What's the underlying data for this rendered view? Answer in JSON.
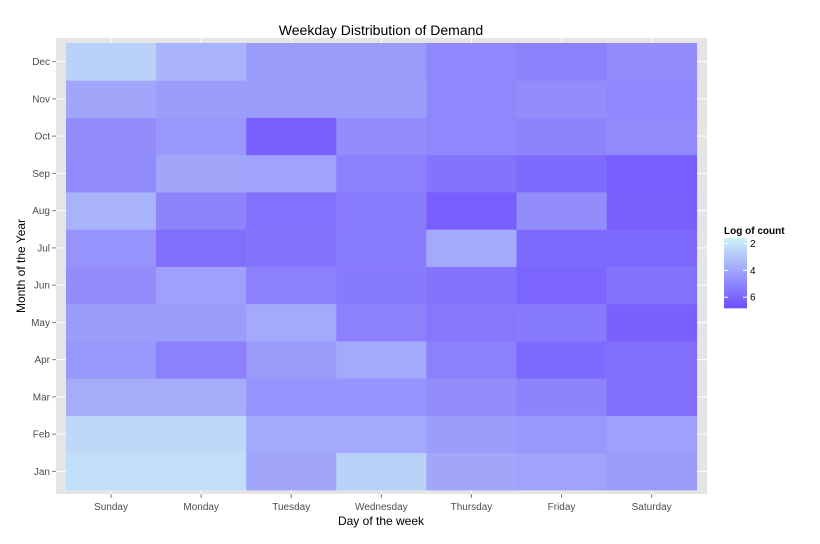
{
  "chart_data": {
    "type": "heatmap",
    "title": "Weekday Distribution of Demand",
    "xlabel": "Day of the week",
    "ylabel": "Month of the Year",
    "x_categories": [
      "Sunday",
      "Monday",
      "Tuesday",
      "Wednesday",
      "Thursday",
      "Friday",
      "Saturday"
    ],
    "y_categories": [
      "Jan",
      "Feb",
      "Mar",
      "Apr",
      "May",
      "Jun",
      "Jul",
      "Aug",
      "Sep",
      "Oct",
      "Nov",
      "Dec"
    ],
    "values": [
      [
        2.2,
        2.2,
        4.0,
        2.6,
        4.0,
        4.1,
        4.3
      ],
      [
        2.4,
        2.4,
        3.9,
        3.9,
        4.3,
        4.5,
        4.2
      ],
      [
        3.8,
        3.8,
        4.6,
        4.6,
        4.8,
        5.1,
        5.8
      ],
      [
        4.5,
        5.2,
        4.4,
        3.9,
        5.2,
        5.9,
        5.8
      ],
      [
        4.3,
        4.3,
        3.9,
        5.2,
        5.5,
        5.4,
        6.2
      ],
      [
        4.8,
        4.2,
        5.2,
        5.4,
        5.6,
        6.1,
        5.6
      ],
      [
        4.6,
        5.8,
        5.6,
        5.3,
        3.9,
        5.9,
        5.9
      ],
      [
        3.6,
        5.1,
        5.7,
        5.3,
        6.3,
        4.8,
        6.2
      ],
      [
        4.9,
        4.0,
        4.1,
        5.2,
        5.6,
        5.9,
        6.3
      ],
      [
        4.8,
        4.5,
        6.2,
        4.8,
        5.0,
        5.1,
        4.9
      ],
      [
        4.0,
        4.3,
        4.3,
        4.3,
        5.0,
        4.8,
        5.0
      ],
      [
        2.6,
        3.6,
        4.4,
        4.4,
        5.0,
        5.2,
        4.8
      ]
    ],
    "color_scale": {
      "low": "#ccf2f7",
      "high": "#6f4eff",
      "domain": [
        1.6,
        6.8
      ]
    },
    "legend": {
      "title": "Log of count",
      "placement": "right",
      "ticks": [
        2,
        4,
        6
      ],
      "tick_labels": [
        "2",
        "4",
        "6"
      ]
    },
    "grid": true,
    "panel_background": "#e5e5e5",
    "grid_color": "#ffffff"
  }
}
